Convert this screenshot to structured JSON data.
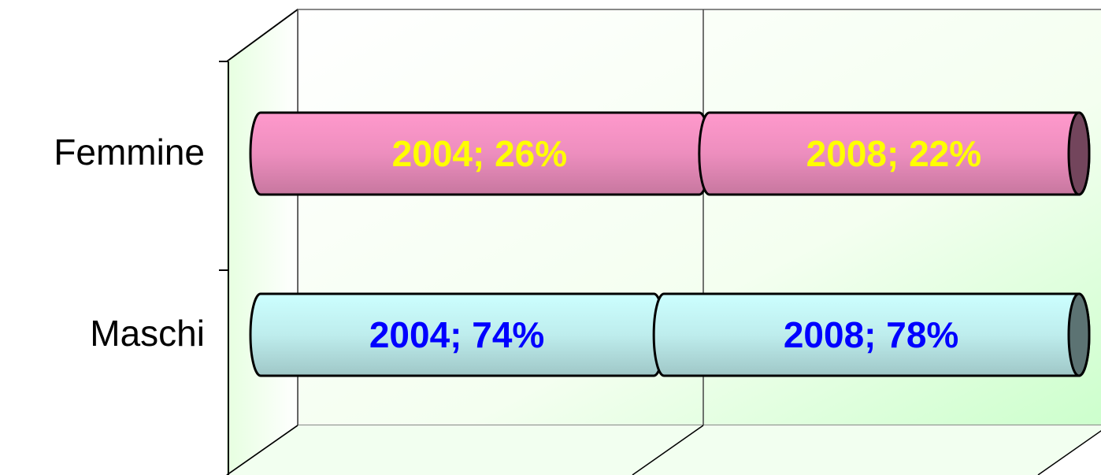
{
  "chart_data": {
    "type": "bar",
    "stacked": "percent",
    "orientation": "horizontal",
    "categories": [
      "Femmine",
      "Maschi"
    ],
    "colors": [
      "#ff99cc",
      "#ccffff"
    ],
    "label_colors": [
      "#ffff00",
      "#0000ff"
    ],
    "series": [
      {
        "name": "2004",
        "values": [
          26,
          74
        ],
        "value_labels": [
          "2004; 26%",
          "2004; 74%"
        ]
      },
      {
        "name": "2008",
        "values": [
          22,
          78
        ],
        "value_labels": [
          "2008; 22%",
          "2008; 78%"
        ]
      }
    ],
    "xlim": [
      0,
      100
    ],
    "xticks": [
      0,
      50,
      100
    ],
    "grid": true
  }
}
